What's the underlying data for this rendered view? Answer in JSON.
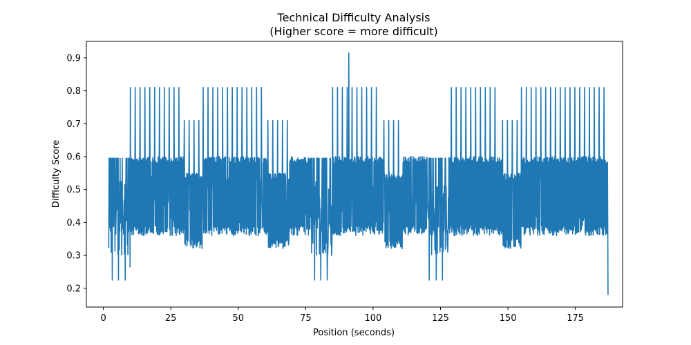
{
  "chart_data": {
    "type": "line",
    "title": "Technical Difficulty Analysis",
    "subtitle": "(Higher score = more difficult)",
    "xlabel": "Position (seconds)",
    "ylabel": "Difficulty Score",
    "xlim": [
      -6.3,
      192.5
    ],
    "ylim": [
      0.143,
      0.95
    ],
    "xticks": [
      0,
      25,
      50,
      75,
      100,
      125,
      150,
      175
    ],
    "yticks": [
      0.2,
      0.3,
      0.4,
      0.5,
      0.6,
      0.7,
      0.8,
      0.9
    ],
    "xtick_labels": [
      "0",
      "25",
      "50",
      "75",
      "100",
      "125",
      "150",
      "175"
    ],
    "ytick_labels": [
      "0.2",
      "0.3",
      "0.4",
      "0.5",
      "0.6",
      "0.7",
      "0.8",
      "0.9"
    ],
    "grid": false,
    "line_color": "#1f77b4",
    "series": [
      {
        "x_start": 2.0,
        "x_end": 187.0,
        "step": 0.1,
        "floor": 0.36,
        "high": 0.6,
        "spike_peak": 0.81,
        "max_peak": {
          "x": 91.0,
          "y": 0.915
        },
        "end_value": 0.18,
        "low_dips": [
          {
            "x": 3.3,
            "y": 0.225
          },
          {
            "x": 5.6,
            "y": 0.225
          },
          {
            "x": 8.1,
            "y": 0.225
          },
          {
            "x": 78.3,
            "y": 0.225
          },
          {
            "x": 80.6,
            "y": 0.225
          },
          {
            "x": 83.0,
            "y": 0.225
          },
          {
            "x": 120.8,
            "y": 0.225
          },
          {
            "x": 123.4,
            "y": 0.225
          },
          {
            "x": 125.7,
            "y": 0.225
          },
          {
            "x": 9.9,
            "y": 0.265
          }
        ],
        "spike_segments": [
          {
            "from": 10.0,
            "to": 29.0,
            "spacing": 1.8,
            "peak": 0.81
          },
          {
            "from": 37.0,
            "to": 59.0,
            "spacing": 1.8,
            "peak": 0.81
          },
          {
            "from": 85.0,
            "to": 103.0,
            "spacing": 1.8,
            "peak": 0.81
          },
          {
            "from": 129.0,
            "to": 147.0,
            "spacing": 1.8,
            "peak": 0.81
          },
          {
            "from": 155.0,
            "to": 186.0,
            "spacing": 1.8,
            "peak": 0.81
          }
        ],
        "mid_spike_segments": [
          {
            "from": 30.0,
            "to": 37.0,
            "spacing": 1.8,
            "peak": 0.71
          },
          {
            "from": 61.0,
            "to": 69.0,
            "spacing": 1.8,
            "peak": 0.71
          },
          {
            "from": 104.0,
            "to": 111.0,
            "spacing": 1.8,
            "peak": 0.71
          },
          {
            "from": 148.0,
            "to": 155.0,
            "spacing": 1.8,
            "peak": 0.71
          }
        ],
        "dense_segments": [
          {
            "from": 10.0,
            "to": 30.0,
            "low": 0.36,
            "high": 0.6
          },
          {
            "from": 30.0,
            "to": 37.0,
            "low": 0.32,
            "high": 0.55
          },
          {
            "from": 37.0,
            "to": 61.0,
            "low": 0.36,
            "high": 0.6
          },
          {
            "from": 61.0,
            "to": 69.0,
            "low": 0.32,
            "high": 0.55
          },
          {
            "from": 69.0,
            "to": 77.0,
            "low": 0.36,
            "high": 0.6
          },
          {
            "from": 85.0,
            "to": 104.0,
            "low": 0.36,
            "high": 0.6
          },
          {
            "from": 104.0,
            "to": 111.0,
            "low": 0.32,
            "high": 0.55
          },
          {
            "from": 111.0,
            "to": 120.0,
            "low": 0.36,
            "high": 0.6
          },
          {
            "from": 128.0,
            "to": 148.0,
            "low": 0.36,
            "high": 0.6
          },
          {
            "from": 148.0,
            "to": 155.0,
            "low": 0.32,
            "high": 0.55
          },
          {
            "from": 155.0,
            "to": 187.0,
            "low": 0.36,
            "high": 0.6
          }
        ],
        "sparse_segments": [
          {
            "from": 2.0,
            "to": 10.0,
            "low": 0.3,
            "high": 0.595
          },
          {
            "from": 77.0,
            "to": 85.0,
            "low": 0.3,
            "high": 0.595
          },
          {
            "from": 120.0,
            "to": 128.0,
            "low": 0.3,
            "high": 0.595
          }
        ]
      }
    ]
  }
}
